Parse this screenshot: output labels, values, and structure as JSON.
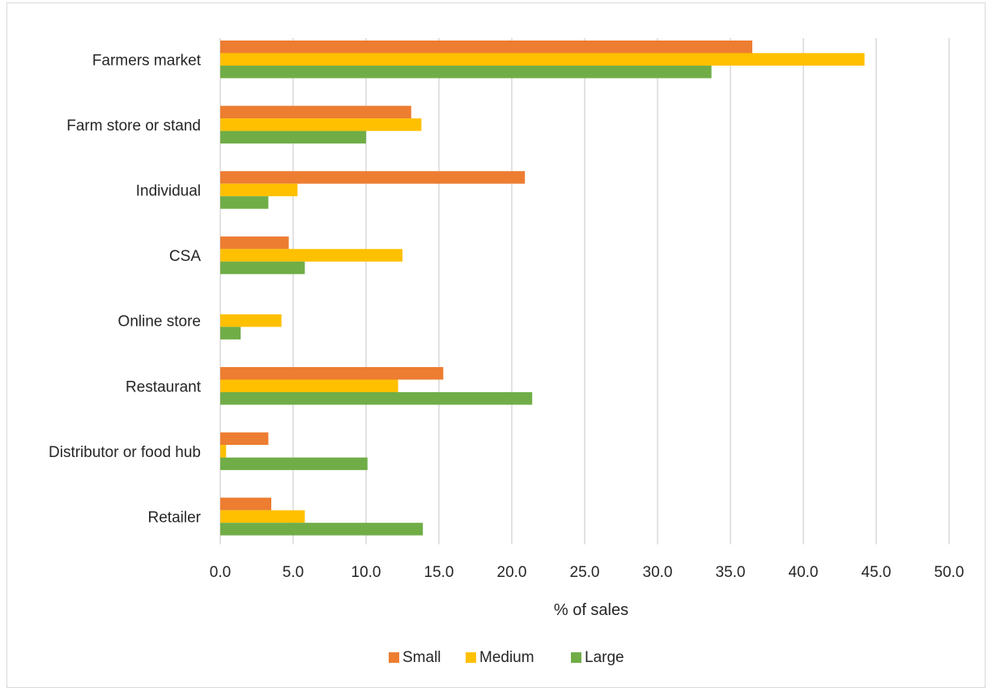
{
  "chart_data": {
    "type": "bar",
    "orientation": "horizontal",
    "categories": [
      "Farmers market",
      "Farm store or stand",
      "Individual",
      "CSA",
      "Online store",
      "Restaurant",
      "Distributor or food hub",
      "Retailer"
    ],
    "series": [
      {
        "name": "Small",
        "color": "#ED7D31",
        "values": [
          36.5,
          13.1,
          20.9,
          4.7,
          0.0,
          15.3,
          3.3,
          3.5
        ]
      },
      {
        "name": "Medium",
        "color": "#FFC000",
        "values": [
          44.2,
          13.8,
          5.3,
          12.5,
          4.2,
          12.2,
          0.4,
          5.8
        ]
      },
      {
        "name": "Large",
        "color": "#70AD47",
        "values": [
          33.7,
          10.0,
          3.3,
          5.8,
          1.4,
          21.4,
          10.1,
          13.9
        ]
      }
    ],
    "xlabel": "% of sales",
    "ylabel": "",
    "xlim": [
      0,
      50
    ],
    "xticks": [
      "0.0",
      "5.0",
      "10.0",
      "15.0",
      "20.0",
      "25.0",
      "30.0",
      "35.0",
      "40.0",
      "45.0",
      "50.0"
    ],
    "grid": "vertical",
    "legend": "bottom"
  }
}
